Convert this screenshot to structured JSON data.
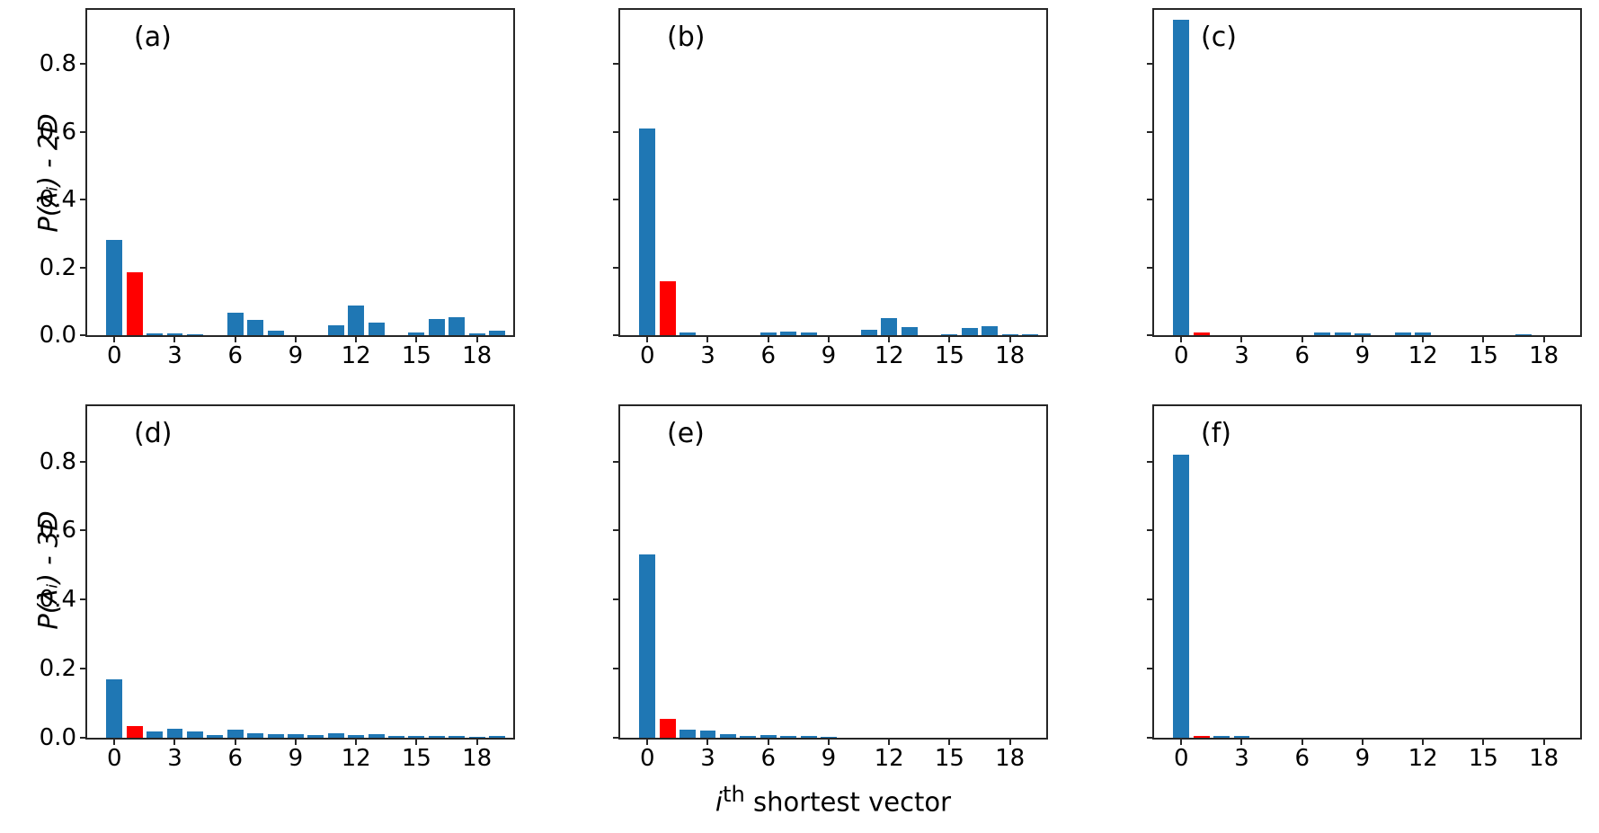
{
  "figure": {
    "xlabel_i": "i",
    "xlabel_sup": "th",
    "xlabel_rest": " shortest vector",
    "row_labels": [
      "P(λᵢ) - 2D",
      "P(λᵢ) - 3D"
    ]
  },
  "colors": {
    "bar": "#1f77b4",
    "highlight": "#ff0000",
    "spine": "#262626"
  },
  "axes": {
    "xlim": [
      -1.35,
      19.8
    ],
    "ylim": [
      0,
      0.96
    ],
    "x_tick_values": [
      0,
      3,
      6,
      9,
      12,
      15,
      18
    ],
    "x_tick_labels": [
      "0",
      "3",
      "6",
      "9",
      "12",
      "15",
      "18"
    ],
    "y_tick_values": [
      0,
      0.2,
      0.4,
      0.6,
      0.8
    ],
    "y_tick_labels": [
      "0.0",
      "0.2",
      "0.4",
      "0.6",
      "0.8"
    ],
    "bar_width": 0.8,
    "grid": false,
    "legend": "none"
  },
  "chart_data": [
    {
      "id": "a",
      "type": "bar",
      "title": "(a)",
      "row": "2D",
      "ytick_labels": true,
      "x": [
        0,
        1,
        2,
        3,
        4,
        5,
        6,
        7,
        8,
        9,
        10,
        11,
        12,
        13,
        14,
        15,
        16,
        17,
        18,
        19
      ],
      "values": [
        0.28,
        0.185,
        0.005,
        0.005,
        0.004,
        0,
        0.066,
        0.045,
        0.012,
        0,
        0,
        0.03,
        0.088,
        0.038,
        0,
        0.007,
        0.048,
        0.052,
        0.006,
        0.013
      ],
      "highlight_index": 1
    },
    {
      "id": "b",
      "type": "bar",
      "title": "(b)",
      "row": "2D",
      "ytick_labels": false,
      "x": [
        0,
        1,
        2,
        3,
        4,
        5,
        6,
        7,
        8,
        9,
        10,
        11,
        12,
        13,
        14,
        15,
        16,
        17,
        18,
        19
      ],
      "values": [
        0.61,
        0.16,
        0.007,
        0,
        0,
        0,
        0.007,
        0.01,
        0.007,
        0,
        0,
        0.015,
        0.05,
        0.025,
        0,
        0.004,
        0.022,
        0.026,
        0.004,
        0.004
      ],
      "highlight_index": 1
    },
    {
      "id": "c",
      "type": "bar",
      "title": "(c)",
      "row": "2D",
      "ytick_labels": false,
      "x": [
        0,
        1,
        2,
        3,
        4,
        5,
        6,
        7,
        8,
        9,
        10,
        11,
        12,
        13,
        14,
        15,
        16,
        17,
        18,
        19
      ],
      "values": [
        0.93,
        0.008,
        0,
        0,
        0,
        0,
        0,
        0.009,
        0.009,
        0.005,
        0,
        0.007,
        0.009,
        0,
        0,
        0,
        0,
        0.004,
        0,
        0
      ],
      "highlight_index": 1
    },
    {
      "id": "d",
      "type": "bar",
      "title": "(d)",
      "row": "3D",
      "ytick_labels": true,
      "x": [
        0,
        1,
        2,
        3,
        4,
        5,
        6,
        7,
        8,
        9,
        10,
        11,
        12,
        13,
        14,
        15,
        16,
        17,
        18,
        19
      ],
      "values": [
        0.17,
        0.035,
        0.018,
        0.025,
        0.019,
        0.008,
        0.023,
        0.012,
        0.01,
        0.01,
        0.009,
        0.012,
        0.008,
        0.01,
        0.006,
        0.004,
        0.004,
        0.004,
        0.003,
        0.004
      ],
      "highlight_index": 1
    },
    {
      "id": "e",
      "type": "bar",
      "title": "(e)",
      "row": "3D",
      "ytick_labels": false,
      "x": [
        0,
        1,
        2,
        3,
        4,
        5,
        6,
        7,
        8,
        9,
        10,
        11,
        12,
        13,
        14,
        15,
        16,
        17,
        18,
        19
      ],
      "values": [
        0.53,
        0.055,
        0.024,
        0.022,
        0.011,
        0.004,
        0.007,
        0.004,
        0.005,
        0.002,
        0,
        0,
        0,
        0,
        0,
        0,
        0,
        0,
        0,
        0
      ],
      "highlight_index": 1
    },
    {
      "id": "f",
      "type": "bar",
      "title": "(f)",
      "row": "3D",
      "ytick_labels": false,
      "x": [
        0,
        1,
        2,
        3,
        4,
        5,
        6,
        7,
        8,
        9,
        10,
        11,
        12,
        13,
        14,
        15,
        16,
        17,
        18,
        19
      ],
      "values": [
        0.82,
        0.006,
        0.004,
        0.004,
        0,
        0,
        0,
        0,
        0,
        0,
        0,
        0,
        0,
        0,
        0,
        0,
        0,
        0,
        0,
        0
      ],
      "highlight_index": 1
    }
  ]
}
